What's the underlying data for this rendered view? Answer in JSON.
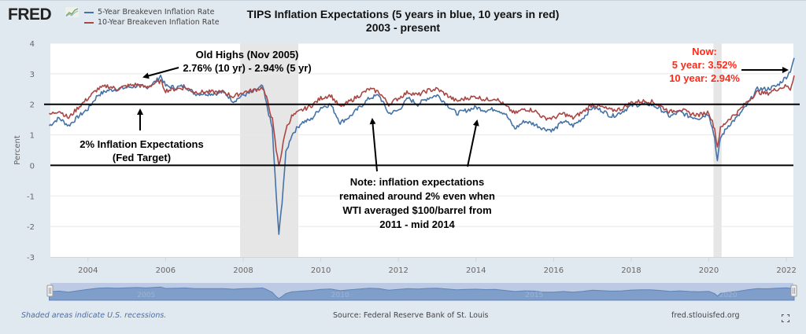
{
  "header": {
    "logo": "FRED",
    "logo_icon": "line-chart-icon",
    "legend": [
      {
        "label": "5-Year Breakeven Inflation Rate",
        "color": "#4572a7"
      },
      {
        "label": "10-Year Breakeven Inflation Rate",
        "color": "#aa4643"
      }
    ],
    "title_line1": "TIPS Inflation Expectations (5 years in blue, 10 years in red)",
    "title_line2": "2003 - present"
  },
  "footer": {
    "recession_note": "Shaded areas indicate U.S. recessions.",
    "source": "Source: Federal Reserve Bank of St. Louis",
    "site": "fred.stlouisfed.org",
    "fullscreen_icon": "fullscreen-icon"
  },
  "navigator": {
    "labels": [
      "2005",
      "2010",
      "2015",
      "2020"
    ],
    "left_handle": "range-handle-left",
    "right_handle": "range-handle-right"
  },
  "chart_data": {
    "type": "line",
    "title": "TIPS Inflation Expectations (5 years in blue, 10 years in red) 2003 - present",
    "xlabel": "",
    "ylabel": "Percent",
    "xlim": [
      2003.0,
      2022.2
    ],
    "ylim": [
      -3,
      4
    ],
    "yticks": [
      "4",
      "3",
      "2",
      "1",
      "0",
      "-1",
      "-2",
      "-3"
    ],
    "ytick_values": [
      4,
      3,
      2,
      1,
      0,
      -1,
      -2,
      -3
    ],
    "xticks": [
      "2004",
      "2006",
      "2008",
      "2010",
      "2012",
      "2014",
      "2016",
      "2018",
      "2020",
      "2022"
    ],
    "xtick_values": [
      2004,
      2006,
      2008,
      2010,
      2012,
      2014,
      2016,
      2018,
      2020,
      2022
    ],
    "grid": true,
    "legend_position": "top-left",
    "recessions": [
      [
        2007.92,
        2009.42
      ],
      [
        2020.12,
        2020.33
      ]
    ],
    "reference_lines": [
      {
        "name": "fed-target-line",
        "y": 2
      },
      {
        "name": "zero-line",
        "y": 0
      }
    ],
    "x": [
      2003.0,
      2003.25,
      2003.5,
      2003.75,
      2004.0,
      2004.25,
      2004.5,
      2004.75,
      2005.0,
      2005.25,
      2005.5,
      2005.75,
      2005.87,
      2006.0,
      2006.25,
      2006.5,
      2006.75,
      2007.0,
      2007.25,
      2007.5,
      2007.75,
      2008.0,
      2008.25,
      2008.5,
      2008.6,
      2008.75,
      2008.85,
      2008.92,
      2009.0,
      2009.1,
      2009.25,
      2009.5,
      2009.75,
      2010.0,
      2010.25,
      2010.5,
      2010.75,
      2011.0,
      2011.25,
      2011.5,
      2011.75,
      2012.0,
      2012.25,
      2012.5,
      2012.75,
      2013.0,
      2013.25,
      2013.5,
      2013.75,
      2014.0,
      2014.25,
      2014.5,
      2014.75,
      2015.0,
      2015.25,
      2015.5,
      2015.75,
      2016.0,
      2016.25,
      2016.5,
      2016.75,
      2017.0,
      2017.25,
      2017.5,
      2017.75,
      2018.0,
      2018.25,
      2018.5,
      2018.75,
      2019.0,
      2019.25,
      2019.5,
      2019.75,
      2020.0,
      2020.15,
      2020.22,
      2020.3,
      2020.5,
      2020.75,
      2021.0,
      2021.25,
      2021.5,
      2021.75,
      2022.0,
      2022.1,
      2022.2
    ],
    "series": [
      {
        "name": "5-Year Breakeven Inflation Rate",
        "color": "#4572a7",
        "values": [
          1.3,
          1.55,
          1.3,
          1.6,
          1.85,
          2.3,
          2.45,
          2.5,
          2.55,
          2.6,
          2.55,
          2.75,
          2.94,
          2.6,
          2.55,
          2.6,
          2.35,
          2.35,
          2.35,
          2.4,
          2.1,
          2.3,
          2.4,
          2.6,
          2.0,
          1.2,
          -1.0,
          -2.25,
          -1.2,
          0.4,
          1.0,
          1.4,
          1.5,
          1.9,
          2.0,
          1.4,
          1.6,
          1.9,
          2.2,
          2.3,
          1.7,
          1.8,
          2.2,
          2.0,
          2.2,
          2.3,
          2.0,
          1.7,
          1.8,
          1.9,
          1.8,
          1.85,
          1.7,
          1.2,
          1.45,
          1.35,
          1.2,
          1.15,
          1.45,
          1.3,
          1.55,
          1.9,
          1.8,
          1.6,
          1.75,
          1.95,
          2.0,
          2.0,
          1.85,
          1.6,
          1.75,
          1.6,
          1.55,
          1.7,
          0.9,
          0.14,
          0.9,
          1.3,
          1.6,
          2.0,
          2.5,
          2.5,
          2.6,
          2.9,
          3.1,
          3.52
        ]
      },
      {
        "name": "10-Year Breakeven Inflation Rate",
        "color": "#aa4643",
        "values": [
          1.65,
          1.8,
          1.55,
          1.9,
          2.2,
          2.5,
          2.6,
          2.5,
          2.6,
          2.65,
          2.55,
          2.7,
          2.76,
          2.45,
          2.5,
          2.55,
          2.4,
          2.4,
          2.4,
          2.4,
          2.25,
          2.4,
          2.45,
          2.55,
          2.2,
          1.5,
          0.5,
          0.0,
          0.5,
          1.2,
          1.6,
          1.8,
          1.95,
          2.2,
          2.3,
          1.9,
          2.1,
          2.3,
          2.5,
          2.4,
          2.0,
          2.2,
          2.4,
          2.3,
          2.45,
          2.5,
          2.3,
          2.1,
          2.2,
          2.25,
          2.15,
          2.2,
          1.95,
          1.7,
          1.85,
          1.8,
          1.55,
          1.55,
          1.7,
          1.55,
          1.75,
          2.0,
          1.9,
          1.8,
          1.85,
          2.05,
          2.1,
          2.1,
          1.95,
          1.75,
          1.85,
          1.7,
          1.65,
          1.75,
          1.2,
          0.6,
          1.2,
          1.5,
          1.75,
          2.1,
          2.4,
          2.35,
          2.5,
          2.6,
          2.5,
          2.94
        ]
      }
    ],
    "annotations": [
      {
        "name": "old-highs",
        "lines": [
          "Old Highs (Nov 2005)",
          "2.76% (10 yr) - 2.94% (5 yr)"
        ],
        "color": "#000000"
      },
      {
        "name": "fed-target-note",
        "lines": [
          "2% Inflation Expectations",
          "(Fed Target)"
        ],
        "color": "#000000"
      },
      {
        "name": "wti-note",
        "lines": [
          "Note: inflation expectations",
          "remained around 2% even when",
          "WTI averaged $100/barrel from",
          "2011 - mid 2014"
        ],
        "color": "#000000"
      },
      {
        "name": "now-note",
        "lines": [
          "Now:",
          "5 year: 3.52%",
          "10 year: 2.94%"
        ],
        "color": "#ff2a1a"
      }
    ]
  }
}
